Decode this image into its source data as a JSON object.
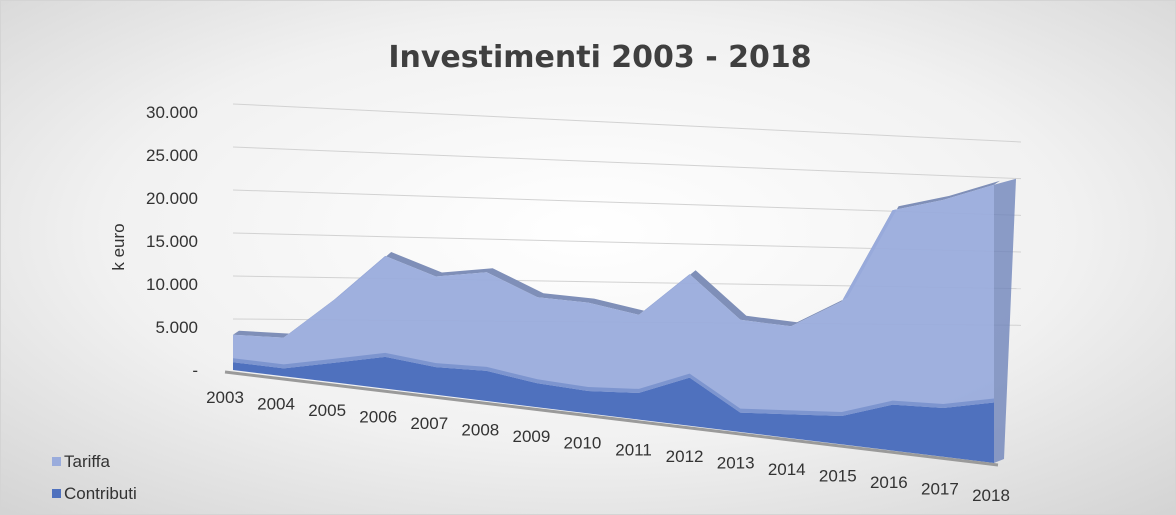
{
  "chart_data": {
    "type": "area",
    "title": "Investimenti 2003 - 2018",
    "xlabel": "",
    "ylabel": "k euro",
    "categories": [
      "2003",
      "2004",
      "2005",
      "2006",
      "2007",
      "2008",
      "2009",
      "2010",
      "2011",
      "2012",
      "2013",
      "2014",
      "2015",
      "2016",
      "2017",
      "2018"
    ],
    "ylim": [
      0,
      30000
    ],
    "y_ticks": [
      0,
      5000,
      10000,
      15000,
      20000,
      25000,
      30000
    ],
    "y_tick_labels": [
      "-",
      "5.000",
      "10.000",
      "15.000",
      "20.000",
      "25.000",
      "30.000"
    ],
    "stacked": true,
    "grid": true,
    "legend_position": "bottom-left",
    "series": [
      {
        "name": "Contributi",
        "color": "#4f71be",
        "values": [
          900,
          900,
          2200,
          3500,
          3000,
          3200,
          2500,
          2300,
          2700,
          4800,
          1900,
          2300,
          2700,
          4300,
          4500,
          5500
        ]
      },
      {
        "name": "Tariffa",
        "color": "#9aacdc",
        "values": [
          3200,
          3500,
          7100,
          11100,
          9800,
          10500,
          9000,
          9100,
          7900,
          10300,
          9100,
          8500,
          10900,
          18200,
          19200,
          19800
        ]
      }
    ]
  },
  "legend": {
    "items": [
      {
        "label": "Tariffa",
        "color": "#9aacdc"
      },
      {
        "label": "Contributi",
        "color": "#4f71be"
      }
    ]
  }
}
